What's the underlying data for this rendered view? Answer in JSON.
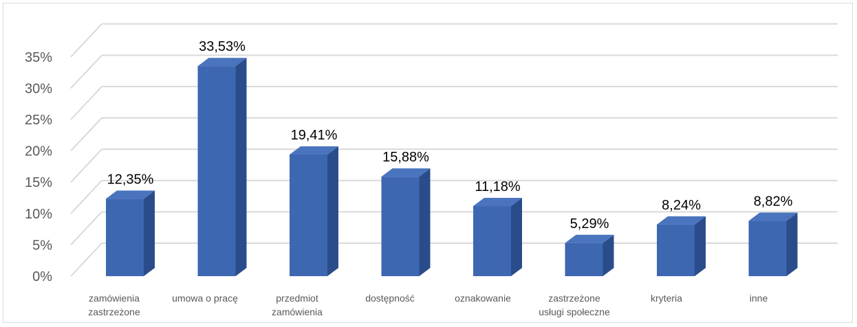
{
  "chart_data": {
    "type": "bar",
    "categories": [
      [
        "zamówienia",
        "zastrzeżone"
      ],
      [
        "umowa o pracę"
      ],
      [
        "przedmiot",
        "zamówienia"
      ],
      [
        "dostępność"
      ],
      [
        "oznakowanie"
      ],
      [
        "zastrzeżone",
        "usługi społeczne"
      ],
      [
        "kryteria"
      ],
      [
        "inne"
      ]
    ],
    "values": [
      12.35,
      33.53,
      19.41,
      15.88,
      11.18,
      5.29,
      8.24,
      8.82
    ],
    "data_labels": [
      "12,35%",
      "33,53%",
      "19,41%",
      "15,88%",
      "11,18%",
      "5,29%",
      "8,24%",
      "8,82%"
    ],
    "y_ticks": [
      0,
      5,
      10,
      15,
      20,
      25,
      30,
      35
    ],
    "y_tick_labels": [
      "0%",
      "5%",
      "10%",
      "15%",
      "20%",
      "25%",
      "30%",
      "35%"
    ],
    "ylim": [
      0,
      35
    ],
    "grid": true,
    "style": "3d-column",
    "colors": {
      "bar_front": "#3d67b1",
      "bar_top": "#4a74be",
      "bar_side": "#2b4c8a",
      "grid": "#d9d9d9",
      "axis_text": "#595959",
      "label_text": "#000000"
    }
  }
}
